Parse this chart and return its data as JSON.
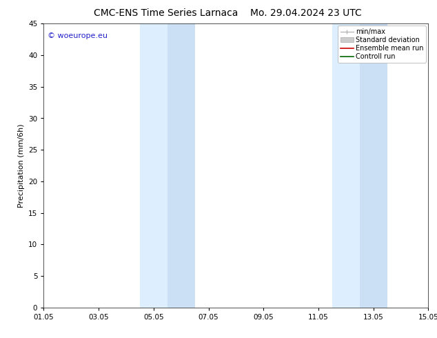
{
  "title_left": "CMC-ENS Time Series Larnaca",
  "title_right": "Mo. 29.04.2024 23 UTC",
  "ylabel": "Precipitation (mm/6h)",
  "watermark": "© woeurope.eu",
  "watermark_color": "#2222cc",
  "ylim": [
    0,
    45
  ],
  "yticks": [
    0,
    5,
    10,
    15,
    20,
    25,
    30,
    35,
    40,
    45
  ],
  "xtick_labels": [
    "01.05",
    "03.05",
    "05.05",
    "07.05",
    "09.05",
    "11.05",
    "13.05",
    "15.05"
  ],
  "xmin": 0,
  "xmax": 14,
  "xtick_positions": [
    0,
    2,
    4,
    6,
    8,
    10,
    12,
    14
  ],
  "shaded_bands": [
    {
      "xmin": 3.5,
      "xmax": 4.5,
      "color": "#ddeeff"
    },
    {
      "xmin": 4.5,
      "xmax": 5.5,
      "color": "#cce0f5"
    },
    {
      "xmin": 10.5,
      "xmax": 11.5,
      "color": "#ddeeff"
    },
    {
      "xmin": 11.5,
      "xmax": 12.5,
      "color": "#cce0f5"
    }
  ],
  "legend_items": [
    {
      "label": "min/max",
      "color": "#aaaaaa",
      "type": "errbar"
    },
    {
      "label": "Standard deviation",
      "color": "#cccccc",
      "type": "fill"
    },
    {
      "label": "Ensemble mean run",
      "color": "#cc0000",
      "type": "line"
    },
    {
      "label": "Controll run",
      "color": "#006600",
      "type": "line"
    }
  ],
  "bg_color": "#ffffff",
  "font_size_title": 10,
  "font_size_axis": 7.5,
  "font_size_legend": 7,
  "font_size_watermark": 8,
  "font_size_ylabel": 8
}
